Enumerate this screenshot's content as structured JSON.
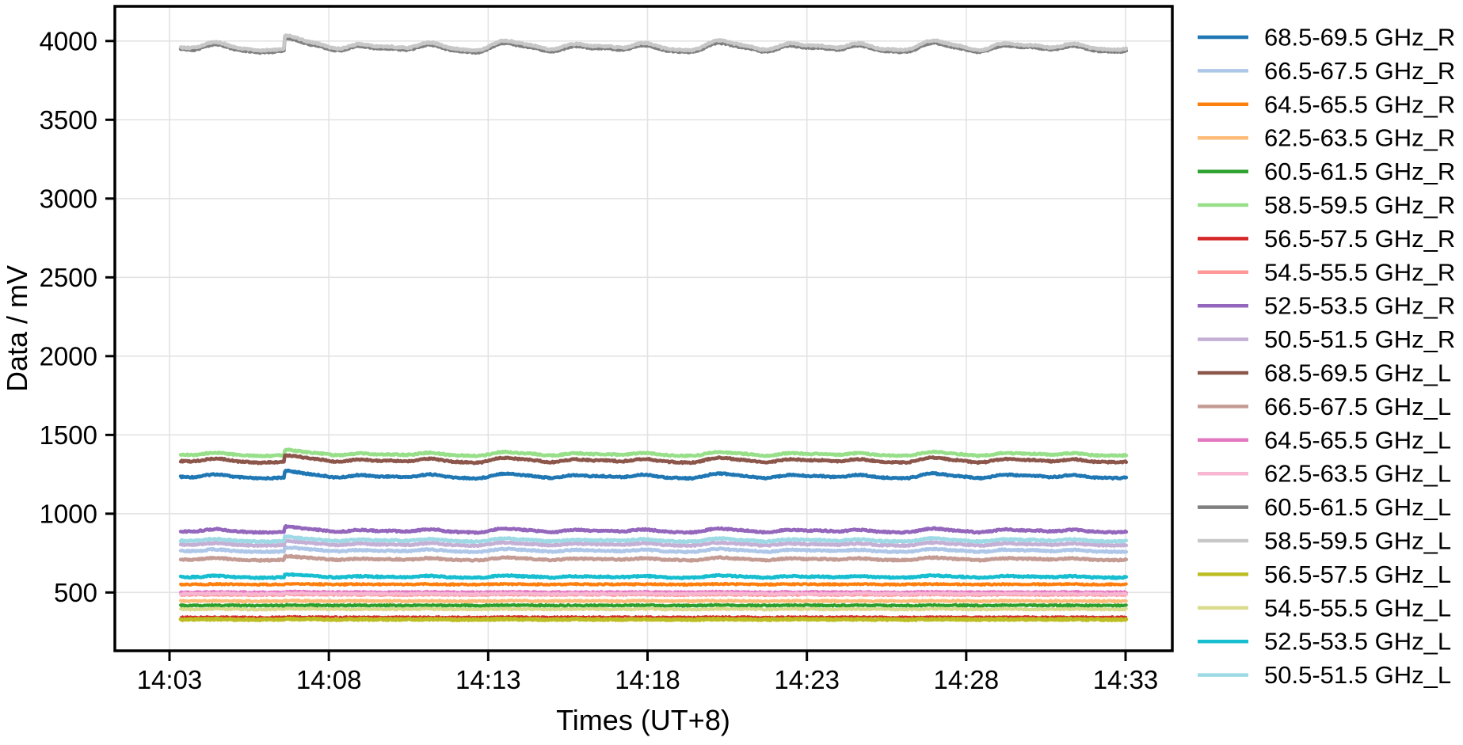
{
  "figure": {
    "background": "#ffffff"
  },
  "chart_data": {
    "type": "line",
    "title": "",
    "xlabel": "Times (UT+8)",
    "ylabel": "Data / mV",
    "x_tick_labels": [
      "14:03",
      "14:08",
      "14:13",
      "14:18",
      "14:23",
      "14:28",
      "14:33"
    ],
    "x_tick_minutes": [
      3,
      8,
      13,
      18,
      23,
      28,
      33
    ],
    "y_ticks": [
      500,
      1000,
      1500,
      2000,
      2500,
      3000,
      3500,
      4000
    ],
    "ylim": [
      130,
      4220
    ],
    "xlim_minutes": [
      1.28,
      34.5
    ],
    "x_data_range_minutes": [
      3.35,
      33.05
    ],
    "grid": true,
    "legend_position": "right-outside",
    "anomaly_time_minutes": 6.6,
    "series": [
      {
        "name": "68.5-69.5 GHz_R",
        "color": "#1f77b4",
        "approx_mV": 1238,
        "wiggle_mV": 20
      },
      {
        "name": "66.5-67.5 GHz_R",
        "color": "#aec7e8",
        "approx_mV": 766,
        "wiggle_mV": 12
      },
      {
        "name": "64.5-65.5 GHz_R",
        "color": "#ff7f0e",
        "approx_mV": 552,
        "wiggle_mV": 2
      },
      {
        "name": "62.5-63.5 GHz_R",
        "color": "#ffbb78",
        "approx_mV": 446,
        "wiggle_mV": 1.5
      },
      {
        "name": "60.5-61.5 GHz_R",
        "color": "#2ca02c",
        "approx_mV": 418,
        "wiggle_mV": 1.5
      },
      {
        "name": "58.5-59.5 GHz_R",
        "color": "#98df8a",
        "approx_mV": 1378,
        "wiggle_mV": 16
      },
      {
        "name": "56.5-57.5 GHz_R",
        "color": "#d62728",
        "approx_mV": 346,
        "wiggle_mV": 1.2
      },
      {
        "name": "54.5-55.5 GHz_R",
        "color": "#ff9896",
        "approx_mV": 486,
        "wiggle_mV": 1.5
      },
      {
        "name": "52.5-53.5 GHz_R",
        "color": "#9467bd",
        "approx_mV": 892,
        "wiggle_mV": 16
      },
      {
        "name": "50.5-51.5 GHz_R",
        "color": "#c5b0d5",
        "approx_mV": 806,
        "wiggle_mV": 12
      },
      {
        "name": "68.5-69.5 GHz_L",
        "color": "#8c564b",
        "approx_mV": 1338,
        "wiggle_mV": 20
      },
      {
        "name": "66.5-67.5 GHz_L",
        "color": "#c49c94",
        "approx_mV": 712,
        "wiggle_mV": 11
      },
      {
        "name": "64.5-65.5 GHz_L",
        "color": "#e377c2",
        "approx_mV": 502,
        "wiggle_mV": 2
      },
      {
        "name": "62.5-63.5 GHz_L",
        "color": "#f7b6d2",
        "approx_mV": 492,
        "wiggle_mV": 2
      },
      {
        "name": "60.5-61.5 GHz_L",
        "color": "#7f7f7f",
        "approx_mV": 3955,
        "wiggle_mV": 38
      },
      {
        "name": "58.5-59.5 GHz_L",
        "color": "#c7c7c7",
        "approx_mV": 3968,
        "wiggle_mV": 40
      },
      {
        "name": "56.5-57.5 GHz_L",
        "color": "#bcbd22",
        "approx_mV": 329,
        "wiggle_mV": 2
      },
      {
        "name": "54.5-55.5 GHz_L",
        "color": "#dbdb8d",
        "approx_mV": 394,
        "wiggle_mV": 2
      },
      {
        "name": "52.5-53.5 GHz_L",
        "color": "#17becf",
        "approx_mV": 600,
        "wiggle_mV": 9
      },
      {
        "name": "50.5-51.5 GHz_L",
        "color": "#9edae5",
        "approx_mV": 832,
        "wiggle_mV": 13
      }
    ]
  }
}
